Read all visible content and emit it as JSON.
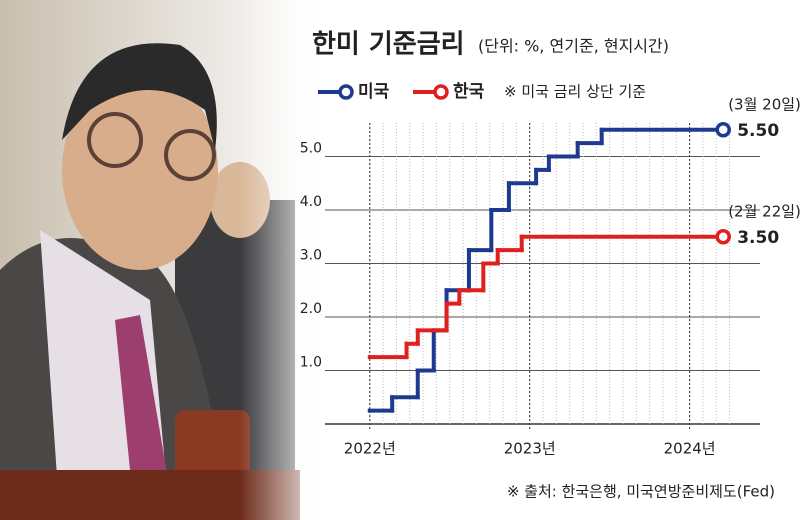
{
  "chart_data": {
    "type": "step",
    "title": "한미 기준금리",
    "subtitle": "(단위: %, 연기준, 현지시간)",
    "note": "※ 미국 금리 상단 기준",
    "source": "※ 출처: 한국은행, 미국연방준비제도(Fed)",
    "xlim": [
      2021.72,
      2024.44
    ],
    "xticks": [
      {
        "value": 2022,
        "label": "2022년"
      },
      {
        "value": 2023,
        "label": "2023년"
      },
      {
        "value": 2024,
        "label": "2024년"
      }
    ],
    "ylim": [
      0,
      6
    ],
    "yticks": [
      {
        "value": 1,
        "label": "1.0"
      },
      {
        "value": 2,
        "label": "2.0"
      },
      {
        "value": 3,
        "label": "3.0"
      },
      {
        "value": 4,
        "label": "4.0"
      },
      {
        "value": 5,
        "label": "5.0"
      }
    ],
    "grid": true,
    "series": [
      {
        "name": "미국",
        "color": "#1e3a8f",
        "x": [
          2022.0,
          2022.14,
          2022.3,
          2022.4,
          2022.48,
          2022.62,
          2022.76,
          2022.87,
          2023.04,
          2023.12,
          2023.3,
          2023.45,
          2024.21
        ],
        "values": [
          0.25,
          0.5,
          1.0,
          1.75,
          2.5,
          3.25,
          4.0,
          4.5,
          4.75,
          5.0,
          5.25,
          5.5,
          5.5
        ],
        "value_labels": [
          null,
          null,
          null,
          null,
          null,
          null,
          null,
          null,
          null,
          null,
          null,
          null,
          "5.50"
        ],
        "end_label": "(3월 20일)"
      },
      {
        "name": "한국",
        "color": "#e0201e",
        "x": [
          2022.0,
          2022.23,
          2022.3,
          2022.48,
          2022.56,
          2022.71,
          2022.8,
          2022.95,
          2024.21
        ],
        "values": [
          1.25,
          1.5,
          1.75,
          2.25,
          2.5,
          3.0,
          3.25,
          3.5,
          3.5
        ],
        "value_labels": [
          null,
          null,
          null,
          null,
          null,
          null,
          null,
          null,
          "3.50"
        ],
        "end_label": "(2월 22일)"
      }
    ]
  }
}
